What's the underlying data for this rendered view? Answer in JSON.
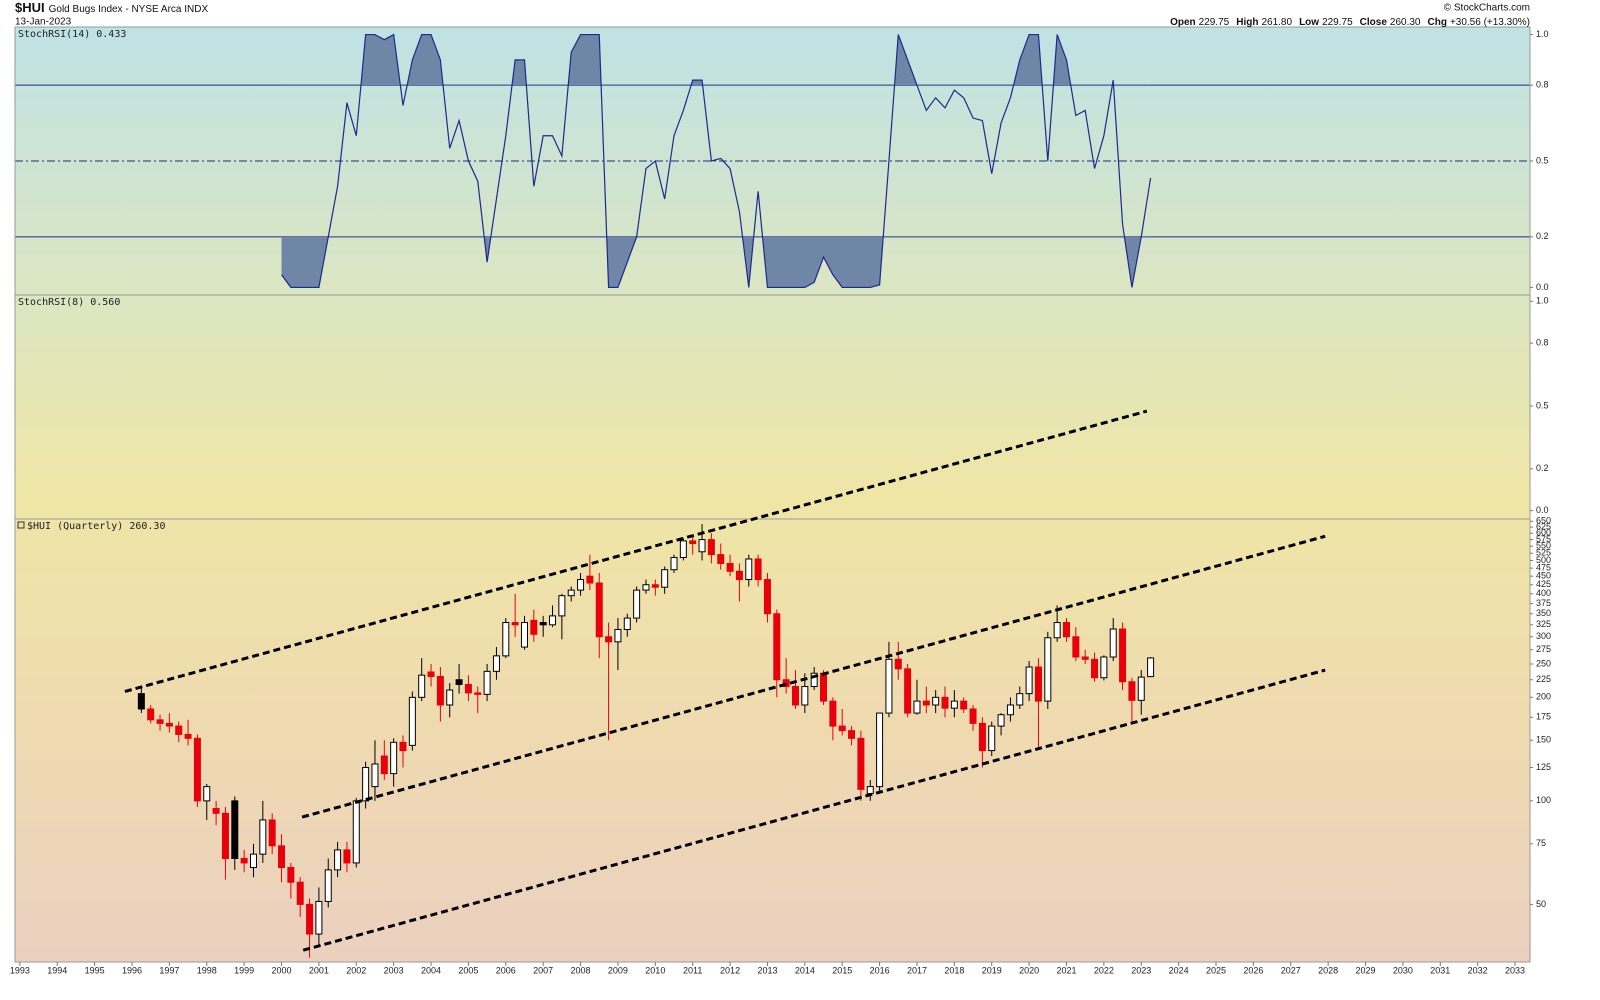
{
  "header": {
    "symbol": "$HUI",
    "name": "Gold Bugs Index - NYSE Arca INDX",
    "date": "13-Jan-2023",
    "source": "© StockCharts.com",
    "quote": [
      {
        "label": "Open",
        "value": "229.75"
      },
      {
        "label": "High",
        "value": "261.80"
      },
      {
        "label": "Low",
        "value": "229.75"
      },
      {
        "label": "Close",
        "value": "260.30"
      },
      {
        "label": "Chg",
        "value": "+30.56 (+13.30%)"
      }
    ]
  },
  "chart_data": [
    {
      "type": "line",
      "title": "StochRSI(14) 0.433",
      "x": [
        2000,
        2000.25,
        2000.5,
        2000.75,
        2001,
        2001.25,
        2001.5,
        2001.75,
        2002,
        2002.25,
        2002.5,
        2002.75,
        2003,
        2003.25,
        2003.5,
        2003.75,
        2004,
        2004.25,
        2004.5,
        2004.75,
        2005,
        2005.25,
        2005.5,
        2005.75,
        2006,
        2006.25,
        2006.5,
        2006.75,
        2007,
        2007.25,
        2007.5,
        2007.75,
        2008,
        2008.25,
        2008.5,
        2008.75,
        2009,
        2009.25,
        2009.5,
        2009.75,
        2010,
        2010.25,
        2010.5,
        2010.75,
        2011,
        2011.25,
        2011.5,
        2011.75,
        2012,
        2012.25,
        2012.5,
        2012.75,
        2013,
        2013.25,
        2013.5,
        2013.75,
        2014,
        2014.25,
        2014.5,
        2014.75,
        2015,
        2015.25,
        2015.5,
        2015.75,
        2016,
        2016.25,
        2016.5,
        2016.75,
        2017,
        2017.25,
        2017.5,
        2017.75,
        2018,
        2018.25,
        2018.5,
        2018.75,
        2019,
        2019.25,
        2019.5,
        2019.75,
        2020,
        2020.25,
        2020.5,
        2020.75,
        2021,
        2021.25,
        2021.5,
        2021.75,
        2022,
        2022.25,
        2022.5,
        2022.75,
        2023,
        2023.25
      ],
      "series": [
        {
          "name": "StochRSI(14)",
          "color": "#1c2a8c",
          "values": [
            0.05,
            0,
            0,
            0,
            0,
            0.2,
            0.4,
            0.73,
            0.6,
            1,
            1,
            0.98,
            1,
            0.72,
            0.9,
            1,
            1,
            0.9,
            0.55,
            0.66,
            0.5,
            0.42,
            0.1,
            0.35,
            0.6,
            0.9,
            0.9,
            0.4,
            0.6,
            0.6,
            0.52,
            0.93,
            1,
            1,
            1,
            0,
            0,
            0.1,
            0.2,
            0.47,
            0.5,
            0.35,
            0.6,
            0.7,
            0.82,
            0.82,
            0.5,
            0.51,
            0.47,
            0.3,
            0,
            0.38,
            0,
            0,
            0,
            0,
            0,
            0.02,
            0.12,
            0.05,
            0,
            0,
            0,
            0,
            0.01,
            0.5,
            1,
            0.9,
            0.8,
            0.7,
            0.75,
            0.71,
            0.78,
            0.75,
            0.67,
            0.66,
            0.45,
            0.65,
            0.75,
            0.9,
            1,
            1,
            0.5,
            1,
            0.9,
            0.68,
            0.7,
            0.47,
            0.6,
            0.82,
            0.25,
            0,
            0.2,
            0.433
          ]
        }
      ],
      "shade_color": "#6f86a6",
      "reference_lines": [
        {
          "value": 0.8,
          "style": "solid",
          "shade": "above"
        },
        {
          "value": 0.5,
          "style": "dashdot"
        },
        {
          "value": 0.2,
          "style": "solid",
          "shade": "below"
        }
      ],
      "xlim": [
        1992.87,
        2033.4
      ],
      "ylim": [
        -0.03,
        1.03
      ],
      "yticks": [
        {
          "value": 1,
          "label": "1.0"
        },
        0.8,
        0.5,
        0.2,
        {
          "value": 0,
          "label": "0.0"
        }
      ]
    },
    {
      "type": "line",
      "title": "StochRSI(8) 0.560",
      "xlim": [
        1992.87,
        2033.4
      ],
      "ylim": [
        -0.04,
        1.03
      ],
      "yticks": [
        {
          "value": 1,
          "label": "1.0"
        },
        0.8,
        0.5,
        0.2,
        {
          "value": 0,
          "label": "0.0"
        }
      ]
    },
    {
      "type": "candlestick",
      "title": "$HUI (Quarterly) 260.30",
      "x": [
        1996.25,
        1996.5,
        1996.75,
        1997,
        1997.25,
        1997.5,
        1997.75,
        1998,
        1998.25,
        1998.5,
        1998.75,
        1999,
        1999.25,
        1999.5,
        1999.75,
        2000,
        2000.25,
        2000.5,
        2000.75,
        2001,
        2001.25,
        2001.5,
        2001.75,
        2002,
        2002.25,
        2002.5,
        2002.75,
        2003,
        2003.25,
        2003.5,
        2003.75,
        2004,
        2004.25,
        2004.5,
        2004.75,
        2005,
        2005.25,
        2005.5,
        2005.75,
        2006,
        2006.25,
        2006.5,
        2006.75,
        2007,
        2007.25,
        2007.5,
        2007.75,
        2008,
        2008.25,
        2008.5,
        2008.75,
        2009,
        2009.25,
        2009.5,
        2009.75,
        2010,
        2010.25,
        2010.5,
        2010.75,
        2011,
        2011.25,
        2011.5,
        2011.75,
        2012,
        2012.25,
        2012.5,
        2012.75,
        2013,
        2013.25,
        2013.5,
        2013.75,
        2014,
        2014.25,
        2014.5,
        2014.75,
        2015,
        2015.25,
        2015.5,
        2015.75,
        2016,
        2016.25,
        2016.5,
        2016.75,
        2017,
        2017.25,
        2017.5,
        2017.75,
        2018,
        2018.25,
        2018.5,
        2018.75,
        2019,
        2019.25,
        2019.5,
        2019.75,
        2020,
        2020.25,
        2020.5,
        2020.75,
        2021,
        2021.25,
        2021.5,
        2021.75,
        2022,
        2022.25,
        2022.5,
        2022.75,
        2023,
        2023.25
      ],
      "open": [
        205,
        185,
        172,
        168,
        165,
        156,
        152,
        100,
        95,
        92,
        100,
        68,
        64,
        70,
        88,
        74,
        64,
        58,
        50,
        41,
        51,
        63,
        72,
        66,
        100,
        110,
        135,
        120,
        148,
        145,
        200,
        237,
        230,
        190,
        225,
        218,
        206,
        204,
        238,
        264,
        330,
        280,
        335,
        330,
        325,
        345,
        395,
        410,
        450,
        430,
        300,
        290,
        315,
        340,
        410,
        425,
        418,
        470,
        510,
        570,
        530,
        575,
        520,
        490,
        465,
        440,
        505,
        440,
        350,
        225,
        215,
        190,
        215,
        235,
        195,
        165,
        160,
        152,
        105,
        110,
        180,
        258,
        242,
        180,
        195,
        190,
        200,
        186,
        195,
        185,
        168,
        140,
        165,
        178,
        190,
        205,
        245,
        195,
        298,
        330,
        300,
        262,
        258,
        228,
        262,
        316,
        222,
        196,
        229.75
      ],
      "high": [
        214,
        190,
        178,
        180,
        170,
        172,
        156,
        112,
        100,
        96,
        103,
        72,
        75,
        100,
        92,
        80,
        66,
        60,
        52,
        56,
        68,
        76,
        76,
        102,
        130,
        150,
        150,
        152,
        155,
        208,
        260,
        250,
        245,
        220,
        250,
        232,
        215,
        250,
        280,
        340,
        400,
        345,
        360,
        345,
        370,
        400,
        420,
        460,
        520,
        460,
        330,
        340,
        350,
        420,
        440,
        440,
        480,
        520,
        580,
        590,
        638,
        600,
        560,
        520,
        490,
        520,
        520,
        460,
        360,
        260,
        240,
        235,
        245,
        240,
        200,
        185,
        165,
        160,
        115,
        180,
        290,
        290,
        250,
        225,
        215,
        210,
        215,
        210,
        200,
        190,
        175,
        170,
        180,
        200,
        215,
        255,
        260,
        310,
        370,
        340,
        320,
        275,
        270,
        265,
        340,
        330,
        228,
        240,
        261.8
      ],
      "low": [
        180,
        168,
        160,
        158,
        148,
        145,
        96,
        88,
        85,
        59,
        63,
        62,
        60,
        66,
        70,
        58,
        52,
        46,
        35,
        38,
        49,
        60,
        62,
        64,
        95,
        100,
        115,
        110,
        125,
        140,
        195,
        215,
        170,
        175,
        205,
        195,
        180,
        195,
        225,
        260,
        300,
        275,
        290,
        300,
        320,
        295,
        380,
        395,
        410,
        260,
        150,
        240,
        300,
        330,
        400,
        395,
        400,
        460,
        500,
        520,
        500,
        490,
        470,
        450,
        380,
        420,
        420,
        330,
        200,
        205,
        185,
        180,
        210,
        190,
        150,
        155,
        145,
        100,
        100,
        105,
        175,
        225,
        175,
        178,
        180,
        180,
        175,
        175,
        180,
        160,
        125,
        135,
        155,
        170,
        185,
        195,
        142,
        185,
        290,
        290,
        255,
        250,
        222,
        224,
        255,
        210,
        170,
        178,
        229.75
      ],
      "close": [
        185,
        172,
        168,
        165,
        156,
        152,
        100,
        110,
        92,
        68,
        68,
        66,
        70,
        88,
        74,
        64,
        58,
        50,
        41,
        51,
        63,
        72,
        66,
        100,
        125,
        128,
        120,
        148,
        140,
        200,
        232,
        230,
        190,
        210,
        218,
        206,
        204,
        238,
        264,
        330,
        325,
        330,
        305,
        325,
        345,
        395,
        410,
        440,
        430,
        300,
        290,
        315,
        340,
        410,
        425,
        418,
        470,
        510,
        570,
        560,
        575,
        520,
        490,
        465,
        440,
        505,
        440,
        350,
        225,
        215,
        190,
        215,
        235,
        195,
        165,
        160,
        152,
        108,
        110,
        180,
        258,
        242,
        180,
        195,
        190,
        200,
        186,
        195,
        185,
        168,
        140,
        165,
        178,
        190,
        205,
        245,
        195,
        298,
        330,
        300,
        262,
        258,
        228,
        262,
        316,
        222,
        196,
        229,
        260.3
      ],
      "up_color": "#000000",
      "down_color": "#e8000b",
      "hollow_color": "#ffffff",
      "log_scale": true,
      "xlim": [
        1992.87,
        2033.4
      ],
      "ylim": [
        34,
        660
      ],
      "xticks": [
        1993,
        1994,
        1995,
        1996,
        1997,
        1998,
        1999,
        2000,
        2001,
        2002,
        2003,
        2004,
        2005,
        2006,
        2007,
        2008,
        2009,
        2010,
        2011,
        2012,
        2013,
        2014,
        2015,
        2016,
        2017,
        2018,
        2019,
        2020,
        2021,
        2022,
        2023,
        2024,
        2025,
        2026,
        2027,
        2028,
        2029,
        2030,
        2031,
        2032,
        2033
      ],
      "yticks": [
        50,
        75,
        100,
        125,
        150,
        175,
        200,
        225,
        250,
        275,
        300,
        325,
        350,
        375,
        400,
        425,
        450,
        475,
        500,
        525,
        550,
        575,
        600,
        625,
        650
      ],
      "trendline_color": "#000000",
      "trendlines": [
        {
          "x": [
            1995.81,
            2023.15
          ],
          "y": [
            208,
            1359
          ]
        },
        {
          "x": [
            2000.55,
            2027.92
          ],
          "y": [
            89.7,
            588
          ]
        },
        {
          "x": [
            2000.58,
            2027.92
          ],
          "y": [
            36.8,
            240
          ]
        }
      ]
    }
  ]
}
